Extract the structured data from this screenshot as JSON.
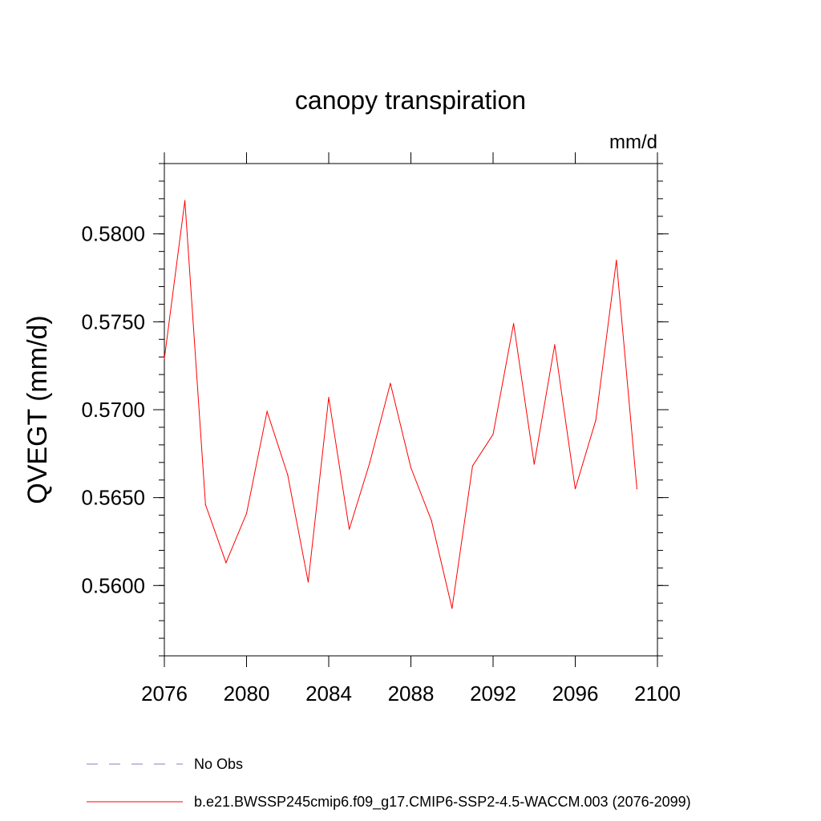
{
  "chart_data": {
    "type": "line",
    "title": "canopy transpiration",
    "units": "mm/d",
    "ylabel": "QVEGT  (mm/d)",
    "xlabel": "",
    "xlim": [
      2076,
      2100
    ],
    "ylim": [
      0.556,
      0.584
    ],
    "x_ticks": [
      2076,
      2080,
      2084,
      2088,
      2092,
      2096,
      2100
    ],
    "x_tick_labels": [
      "2076",
      "2080",
      "2084",
      "2088",
      "2092",
      "2096",
      "2100"
    ],
    "y_ticks": [
      0.56,
      0.565,
      0.57,
      0.575,
      0.58
    ],
    "y_tick_labels": [
      "0.5600",
      "0.5650",
      "0.5700",
      "0.5750",
      "0.5800"
    ],
    "grid": false,
    "legend_position": "bottom",
    "series": [
      {
        "name": "b.e21.BWSSP245cmip6.f09_g17.CMIP6-SSP2-4.5-WACCM.003 (2076-2099)",
        "color": "#ff0000",
        "style": "solid",
        "x": [
          2076,
          2077,
          2078,
          2079,
          2080,
          2081,
          2082,
          2083,
          2084,
          2085,
          2086,
          2087,
          2088,
          2089,
          2090,
          2091,
          2092,
          2093,
          2094,
          2095,
          2096,
          2097,
          2098,
          2099
        ],
        "values": [
          0.5729,
          0.5819,
          0.5646,
          0.5613,
          0.5641,
          0.5699,
          0.5663,
          0.5602,
          0.5707,
          0.5632,
          0.567,
          0.5715,
          0.5667,
          0.5637,
          0.5587,
          0.5668,
          0.5686,
          0.5749,
          0.5669,
          0.5737,
          0.5655,
          0.5694,
          0.5785,
          0.5655
        ]
      }
    ],
    "legend": [
      {
        "label": "No Obs",
        "color": "#8080c0",
        "style": "dashed"
      },
      {
        "label": "b.e21.BWSSP245cmip6.f09_g17.CMIP6-SSP2-4.5-WACCM.003 (2076-2099)",
        "color": "#ff0000",
        "style": "solid"
      }
    ]
  }
}
